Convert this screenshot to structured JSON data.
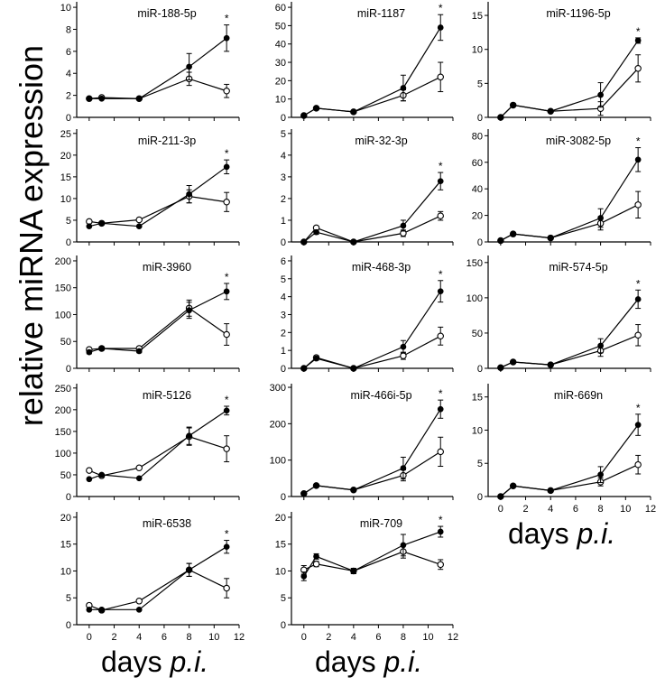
{
  "figure": {
    "ylabel": "relative miRNA expression",
    "xlabel_word": "days",
    "xlabel_italic": "p.i.",
    "x_ticks": [
      0,
      2,
      4,
      6,
      8,
      10,
      12
    ],
    "significance_marker": "*",
    "colors": {
      "filled": "#000000",
      "open": "#ffffff",
      "axis": "#000000"
    }
  },
  "chart_data": [
    {
      "type": "line",
      "title": "miR-188-5p",
      "xlabel": "days p.i.",
      "ylabel": "relative miRNA expression",
      "xlim": [
        -1,
        12
      ],
      "ylim": [
        0,
        10.5
      ],
      "yticks": [
        0,
        2,
        4,
        6,
        8,
        10
      ],
      "series": [
        {
          "name": "filled",
          "x": [
            0,
            1,
            4,
            8,
            11
          ],
          "y": [
            1.7,
            1.7,
            1.7,
            4.6,
            7.2
          ],
          "err": [
            0.1,
            0.1,
            0.1,
            1.2,
            1.2
          ]
        },
        {
          "name": "open",
          "x": [
            0,
            1,
            4,
            8,
            11
          ],
          "y": [
            1.7,
            1.8,
            1.7,
            3.5,
            2.4
          ],
          "err": [
            0.1,
            0.1,
            0.1,
            0.6,
            0.6
          ]
        }
      ],
      "annotation": "*"
    },
    {
      "type": "line",
      "title": "miR-1187",
      "xlabel": "days p.i.",
      "ylabel": "relative miRNA expression",
      "xlim": [
        -1,
        12
      ],
      "ylim": [
        0,
        63
      ],
      "yticks": [
        0,
        10,
        20,
        30,
        40,
        50,
        60
      ],
      "series": [
        {
          "name": "filled",
          "x": [
            0,
            1,
            4,
            8,
            11
          ],
          "y": [
            1,
            5,
            3,
            16,
            49
          ],
          "err": [
            0.5,
            0.5,
            0.5,
            7,
            7
          ]
        },
        {
          "name": "open",
          "x": [
            0,
            1,
            4,
            8,
            11
          ],
          "y": [
            1,
            5,
            3,
            12,
            22
          ],
          "err": [
            0.5,
            0.5,
            0.5,
            3,
            8
          ]
        }
      ],
      "annotation": "*"
    },
    {
      "type": "line",
      "title": "miR-1196-5p",
      "xlabel": "days p.i.",
      "ylabel": "relative miRNA expression",
      "xlim": [
        -1,
        12
      ],
      "ylim": [
        0,
        17
      ],
      "yticks": [
        0,
        5,
        10,
        15
      ],
      "series": [
        {
          "name": "filled",
          "x": [
            0,
            1,
            4,
            8,
            11
          ],
          "y": [
            0,
            1.8,
            0.9,
            3.3,
            11.3
          ],
          "err": [
            0.1,
            0.2,
            0.1,
            1.8,
            0.4
          ]
        },
        {
          "name": "open",
          "x": [
            0,
            1,
            4,
            8,
            11
          ],
          "y": [
            0,
            1.8,
            0.9,
            1.3,
            7.2
          ],
          "err": [
            0.1,
            0.2,
            0.1,
            1.0,
            2.0
          ]
        }
      ],
      "annotation": "*"
    },
    {
      "type": "line",
      "title": "miR-211-3p",
      "xlabel": "days p.i.",
      "ylabel": "relative miRNA expression",
      "xlim": [
        -1,
        12
      ],
      "ylim": [
        0,
        26
      ],
      "yticks": [
        0,
        5,
        10,
        15,
        20,
        25
      ],
      "series": [
        {
          "name": "filled",
          "x": [
            0,
            1,
            4,
            8,
            11
          ],
          "y": [
            3.6,
            4.3,
            3.6,
            11,
            17.3
          ],
          "err": [
            0.3,
            0.3,
            0.3,
            2,
            1.6
          ]
        },
        {
          "name": "open",
          "x": [
            0,
            1,
            4,
            8,
            11
          ],
          "y": [
            4.7,
            4.3,
            5.1,
            10.5,
            9.2
          ],
          "err": [
            0.3,
            0.3,
            0.3,
            1.5,
            2.2
          ]
        }
      ],
      "annotation": "*"
    },
    {
      "type": "line",
      "title": "miR-32-3p",
      "xlabel": "days p.i.",
      "ylabel": "relative miRNA expression",
      "xlim": [
        -1,
        12
      ],
      "ylim": [
        0,
        5.2
      ],
      "yticks": [
        0,
        1,
        2,
        3,
        4,
        5
      ],
      "series": [
        {
          "name": "filled",
          "x": [
            0,
            1,
            4,
            8,
            11
          ],
          "y": [
            0,
            0.45,
            0,
            0.75,
            2.8
          ],
          "err": [
            0.02,
            0.1,
            0.02,
            0.25,
            0.4
          ]
        },
        {
          "name": "open",
          "x": [
            0,
            1,
            4,
            8,
            11
          ],
          "y": [
            0,
            0.65,
            0,
            0.4,
            1.2
          ],
          "err": [
            0.02,
            0.08,
            0.02,
            0.15,
            0.2
          ]
        }
      ],
      "annotation": "*"
    },
    {
      "type": "line",
      "title": "miR-3082-5p",
      "xlabel": "days p.i.",
      "ylabel": "relative miRNA expression",
      "xlim": [
        -1,
        12
      ],
      "ylim": [
        0,
        85
      ],
      "yticks": [
        0,
        20,
        40,
        60,
        80
      ],
      "series": [
        {
          "name": "filled",
          "x": [
            0,
            1,
            4,
            8,
            11
          ],
          "y": [
            1,
            6,
            3,
            18,
            62
          ],
          "err": [
            0.5,
            0.5,
            0.5,
            7,
            9
          ]
        },
        {
          "name": "open",
          "x": [
            0,
            1,
            4,
            8,
            11
          ],
          "y": [
            1,
            6,
            3,
            14,
            28
          ],
          "err": [
            0.5,
            0.5,
            0.5,
            5,
            10
          ]
        }
      ],
      "annotation": "*"
    },
    {
      "type": "line",
      "title": "miR-3960",
      "xlabel": "days p.i.",
      "ylabel": "relative miRNA expression",
      "xlim": [
        -1,
        12
      ],
      "ylim": [
        0,
        210
      ],
      "yticks": [
        0,
        50,
        100,
        150,
        200
      ],
      "series": [
        {
          "name": "filled",
          "x": [
            0,
            1,
            4,
            8,
            11
          ],
          "y": [
            30,
            37,
            32,
            108,
            143
          ],
          "err": [
            3,
            3,
            3,
            15,
            15
          ]
        },
        {
          "name": "open",
          "x": [
            0,
            1,
            4,
            8,
            11
          ],
          "y": [
            35,
            37,
            37,
            112,
            63
          ],
          "err": [
            3,
            3,
            3,
            15,
            20
          ]
        }
      ],
      "annotation": "*"
    },
    {
      "type": "line",
      "title": "miR-468-3p",
      "xlabel": "days p.i.",
      "ylabel": "relative miRNA expression",
      "xlim": [
        -1,
        12
      ],
      "ylim": [
        0,
        6.3
      ],
      "yticks": [
        0,
        1,
        2,
        3,
        4,
        5,
        6
      ],
      "series": [
        {
          "name": "filled",
          "x": [
            0,
            1,
            4,
            8,
            11
          ],
          "y": [
            0,
            0.55,
            0,
            1.2,
            4.3
          ],
          "err": [
            0.02,
            0.1,
            0.02,
            0.35,
            0.6
          ]
        },
        {
          "name": "open",
          "x": [
            0,
            1,
            4,
            8,
            11
          ],
          "y": [
            0,
            0.6,
            0,
            0.7,
            1.8
          ],
          "err": [
            0.02,
            0.1,
            0.02,
            0.2,
            0.5
          ]
        }
      ],
      "annotation": "*"
    },
    {
      "type": "line",
      "title": "miR-574-5p",
      "xlabel": "days p.i.",
      "ylabel": "relative miRNA expression",
      "xlim": [
        -1,
        12
      ],
      "ylim": [
        0,
        160
      ],
      "yticks": [
        0,
        50,
        100,
        150
      ],
      "series": [
        {
          "name": "filled",
          "x": [
            0,
            1,
            4,
            8,
            11
          ],
          "y": [
            1,
            9,
            5,
            32,
            98
          ],
          "err": [
            0.5,
            1,
            1,
            10,
            13
          ]
        },
        {
          "name": "open",
          "x": [
            0,
            1,
            4,
            8,
            11
          ],
          "y": [
            1,
            9,
            5,
            25,
            47
          ],
          "err": [
            0.5,
            1,
            1,
            8,
            15
          ]
        }
      ],
      "annotation": "*"
    },
    {
      "type": "line",
      "title": "miR-5126",
      "xlabel": "days p.i.",
      "ylabel": "relative miRNA expression",
      "xlim": [
        -1,
        12
      ],
      "ylim": [
        0,
        260
      ],
      "yticks": [
        0,
        50,
        100,
        150,
        200,
        250
      ],
      "series": [
        {
          "name": "filled",
          "x": [
            0,
            1,
            4,
            8,
            11
          ],
          "y": [
            40,
            50,
            42,
            140,
            198
          ],
          "err": [
            3,
            3,
            3,
            20,
            10
          ]
        },
        {
          "name": "open",
          "x": [
            0,
            1,
            4,
            8,
            11
          ],
          "y": [
            60,
            48,
            66,
            138,
            110
          ],
          "err": [
            3,
            3,
            3,
            20,
            30
          ]
        }
      ],
      "annotation": "*"
    },
    {
      "type": "line",
      "title": "miR-466i-5p",
      "xlabel": "days p.i.",
      "ylabel": "relative miRNA expression",
      "xlim": [
        -1,
        12
      ],
      "ylim": [
        0,
        310
      ],
      "yticks": [
        0,
        100,
        200,
        300
      ],
      "series": [
        {
          "name": "filled",
          "x": [
            0,
            1,
            4,
            8,
            11
          ],
          "y": [
            8,
            30,
            18,
            78,
            240
          ],
          "err": [
            3,
            3,
            3,
            30,
            25
          ]
        },
        {
          "name": "open",
          "x": [
            0,
            1,
            4,
            8,
            11
          ],
          "y": [
            8,
            30,
            18,
            58,
            123
          ],
          "err": [
            3,
            3,
            3,
            15,
            40
          ]
        }
      ],
      "annotation": "*"
    },
    {
      "type": "line",
      "title": "miR-669n",
      "xlabel": "days p.i.",
      "ylabel": "relative miRNA expression",
      "xlim": [
        -1,
        12
      ],
      "ylim": [
        0,
        17
      ],
      "yticks": [
        0,
        5,
        10,
        15
      ],
      "series": [
        {
          "name": "filled",
          "x": [
            0,
            1,
            4,
            8,
            11
          ],
          "y": [
            0,
            1.6,
            0.9,
            3.3,
            10.8
          ],
          "err": [
            0.1,
            0.2,
            0.1,
            1.2,
            1.6
          ]
        },
        {
          "name": "open",
          "x": [
            0,
            1,
            4,
            8,
            11
          ],
          "y": [
            0,
            1.6,
            0.9,
            2.2,
            4.8
          ],
          "err": [
            0.1,
            0.2,
            0.1,
            0.6,
            1.4
          ]
        }
      ],
      "annotation": "*"
    },
    {
      "type": "line",
      "title": "miR-6538",
      "xlabel": "days p.i.",
      "ylabel": "relative miRNA expression",
      "xlim": [
        -1,
        12
      ],
      "ylim": [
        0,
        21
      ],
      "yticks": [
        0,
        5,
        10,
        15,
        20
      ],
      "series": [
        {
          "name": "filled",
          "x": [
            0,
            1,
            4,
            8,
            11
          ],
          "y": [
            2.8,
            2.8,
            2.8,
            10.2,
            14.5
          ],
          "err": [
            0.2,
            0.2,
            0.2,
            1.2,
            1.2
          ]
        },
        {
          "name": "open",
          "x": [
            0,
            1,
            4,
            8,
            11
          ],
          "y": [
            3.6,
            2.7,
            4.4,
            10.2,
            6.8
          ],
          "err": [
            0.2,
            0.2,
            0.2,
            1.2,
            1.8
          ]
        }
      ],
      "annotation": "*"
    },
    {
      "type": "line",
      "title": "miR-709",
      "xlabel": "days p.i.",
      "ylabel": "relative miRNA expression",
      "xlim": [
        -1,
        12
      ],
      "ylim": [
        0,
        21
      ],
      "yticks": [
        0,
        5,
        10,
        15,
        20
      ],
      "series": [
        {
          "name": "filled",
          "x": [
            0,
            1,
            4,
            8,
            11
          ],
          "y": [
            9,
            12.7,
            10,
            14.8,
            17.3
          ],
          "err": [
            0.8,
            0.5,
            0.5,
            2,
            1
          ]
        },
        {
          "name": "open",
          "x": [
            0,
            1,
            4,
            8,
            11
          ],
          "y": [
            10.2,
            11.3,
            10,
            13.6,
            11.2
          ],
          "err": [
            0.8,
            0.5,
            0.5,
            1.2,
            0.9
          ]
        }
      ],
      "annotation": "*"
    }
  ]
}
